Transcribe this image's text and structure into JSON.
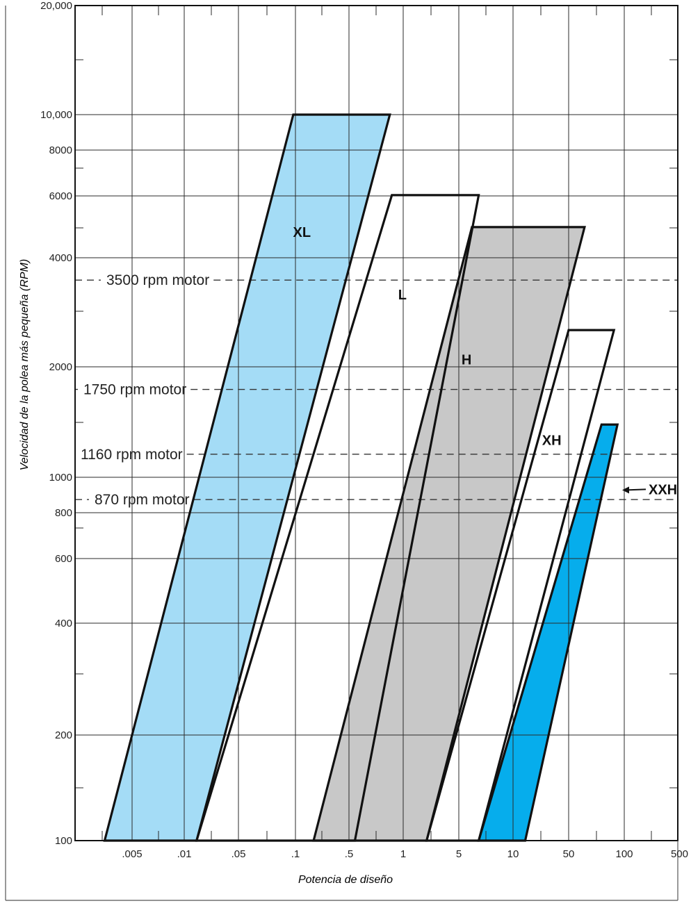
{
  "chart_data": {
    "type": "area",
    "title": "",
    "xlabel": "Potencia de diseño",
    "ylabel": "Velocidad de la polea más pequeña (RPM)",
    "x_scale": "log",
    "y_scale": "log",
    "x_ticks": [
      ".005",
      ".01",
      ".05",
      ".1",
      ".5",
      "1",
      "5",
      "10",
      "50",
      "100",
      "500"
    ],
    "y_ticks": [
      "100",
      "200",
      "400",
      "600",
      "800",
      "1000",
      "2000",
      "4000",
      "6000",
      "8000",
      "10,000",
      "20,000"
    ],
    "grid": true,
    "motor_speeds": [
      {
        "label": "3500 rpm motor",
        "rpm": 3500
      },
      {
        "label": "1750 rpm motor",
        "rpm": 1750
      },
      {
        "label": "1160 rpm motor",
        "rpm": 1160
      },
      {
        "label": "870 rpm motor",
        "rpm": 870
      }
    ],
    "series": [
      {
        "name": "XL",
        "color": "#a4dcf6",
        "polygon": [
          [
            0.0028,
            100
          ],
          [
            0.0195,
            100
          ],
          [
            1.15,
            10000
          ],
          [
            0.15,
            10000
          ]
        ],
        "label_at": [
          0.18,
          4600
        ]
      },
      {
        "name": "L",
        "color": "#ffffff",
        "polygon": [
          [
            0.0195,
            100
          ],
          [
            0.55,
            100
          ],
          [
            7.5,
            6000
          ],
          [
            1.2,
            6000
          ]
        ],
        "label_at": [
          1.5,
          3100
        ]
      },
      {
        "name": "H",
        "color": "#c8c8c8",
        "polygon": [
          [
            0.23,
            100
          ],
          [
            2.5,
            100
          ],
          [
            70,
            4900
          ],
          [
            6.5,
            4900
          ]
        ],
        "label_at": [
          5.8,
          2050
        ]
      },
      {
        "name": "XH",
        "color": "#ffffff",
        "polygon": [
          [
            2.5,
            100
          ],
          [
            7.5,
            100
          ],
          [
            130,
            2550
          ],
          [
            50,
            2550
          ]
        ],
        "label_at": [
          35,
          1230
        ]
      },
      {
        "name": "XXH",
        "color": "#06adec",
        "polygon": [
          [
            7.5,
            100
          ],
          [
            20,
            100
          ],
          [
            140,
            1400
          ],
          [
            100,
            1400
          ]
        ],
        "label_at": [
          270,
          900
        ]
      }
    ],
    "legend": "none"
  }
}
